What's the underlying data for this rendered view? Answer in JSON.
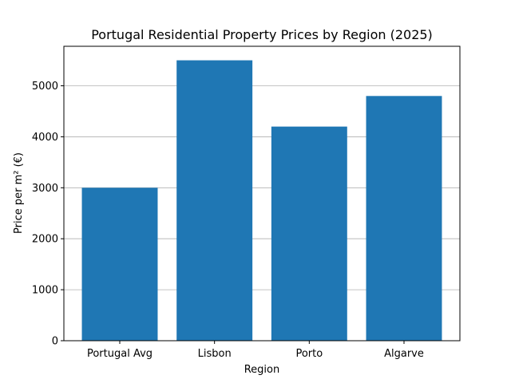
{
  "chart_data": {
    "type": "bar",
    "title": "Portugal Residential Property Prices by Region (2025)",
    "xlabel": "Region",
    "ylabel": "Price per m² (€)",
    "categories": [
      "Portugal Avg",
      "Lisbon",
      "Porto",
      "Algarve"
    ],
    "values": [
      3000,
      5500,
      4200,
      4800
    ],
    "ylim": [
      0,
      5775
    ],
    "yticks": [
      0,
      1000,
      2000,
      3000,
      4000,
      5000
    ],
    "grid": "y",
    "bar_color": "#1f77b4",
    "grid_color": "#b0b0b0"
  }
}
